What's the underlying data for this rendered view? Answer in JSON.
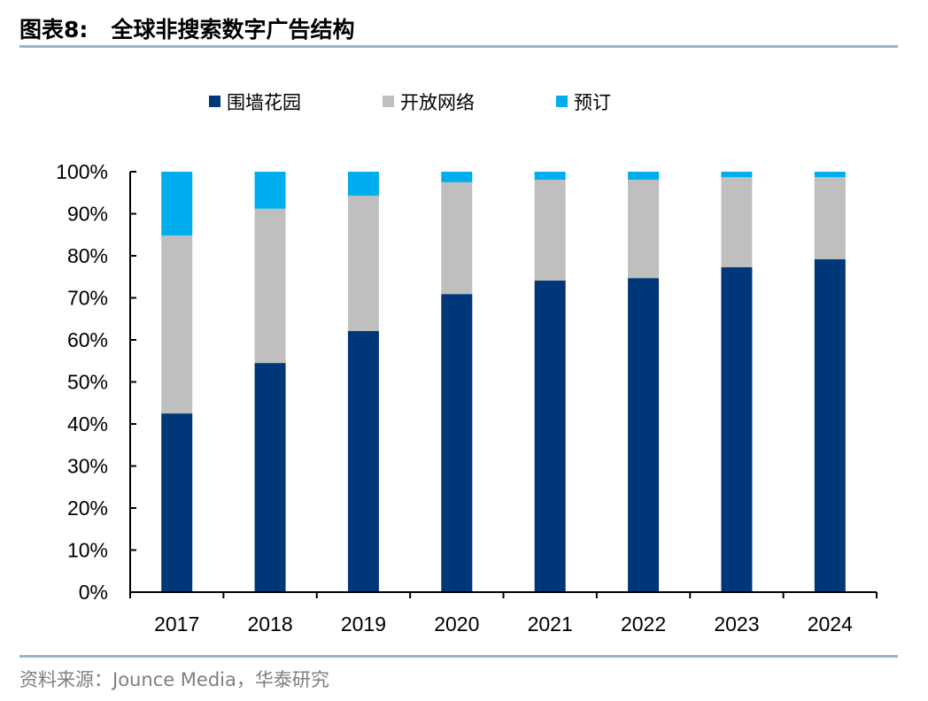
{
  "header": {
    "title": "图表8:   全球非搜索数字广告结构"
  },
  "footer": {
    "source": "资料来源：Jounce Media，华泰研究"
  },
  "colors": {
    "walled_garden": "#003778",
    "open_web": "#BFBFBF",
    "booking": "#00ADEF"
  },
  "chart_data": {
    "type": "bar",
    "stacked": true,
    "title": "全球非搜索数字广告结构",
    "categories": [
      "2017",
      "2018",
      "2019",
      "2020",
      "2021",
      "2022",
      "2023",
      "2024"
    ],
    "series": [
      {
        "name": "围墙花园",
        "values": [
          42.5,
          54.5,
          62.1,
          70.9,
          74.1,
          74.7,
          77.3,
          79.2
        ]
      },
      {
        "name": "开放网络",
        "values": [
          42.3,
          36.7,
          32.2,
          26.6,
          24.0,
          23.4,
          21.4,
          19.5
        ]
      },
      {
        "name": "预订",
        "values": [
          15.2,
          8.8,
          5.7,
          2.5,
          1.9,
          1.9,
          1.3,
          1.3
        ]
      }
    ],
    "ylim": [
      0,
      100
    ],
    "yticks": [
      "0%",
      "10%",
      "20%",
      "30%",
      "40%",
      "50%",
      "60%",
      "70%",
      "80%",
      "90%",
      "100%"
    ],
    "legend": "top-center",
    "grid": false
  }
}
